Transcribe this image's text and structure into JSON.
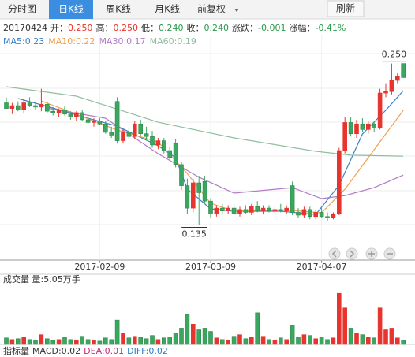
{
  "tabs": [
    "分时图",
    "日K线",
    "周K线",
    "月K线",
    "前复权"
  ],
  "active_tab": 1,
  "refresh": "刷新",
  "info": {
    "date": "20170424",
    "items": [
      {
        "label": "开：",
        "value": "0.250",
        "color": "#e8342e"
      },
      {
        "label": "高：",
        "value": "0.250",
        "color": "#e8342e"
      },
      {
        "label": "低：",
        "value": "0.240",
        "color": "#2a9a4a"
      },
      {
        "label": "收：",
        "value": "0.240",
        "color": "#2a9a4a"
      },
      {
        "label": "涨跌：",
        "value": "-0.001",
        "color": "#2a9a4a"
      },
      {
        "label": "涨幅：",
        "value": "-0.41%",
        "color": "#2a9a4a"
      }
    ]
  },
  "chart_data": {
    "type": "candlestick",
    "categories": [
      null,
      null,
      null,
      null,
      null,
      null,
      null,
      null,
      null,
      null,
      null,
      null,
      null,
      null,
      null,
      null,
      "2017-02-09",
      null,
      null,
      null,
      null,
      null,
      null,
      null,
      null,
      null,
      null,
      null,
      null,
      null,
      null,
      null,
      null,
      null,
      null,
      "2017-03-09",
      null,
      null,
      null,
      null,
      null,
      null,
      null,
      null,
      null,
      null,
      null,
      null,
      null,
      null,
      null,
      null,
      null,
      null,
      "2017-04-07",
      null,
      null,
      null,
      null,
      null,
      null,
      null,
      null,
      null,
      null,
      null,
      null,
      null,
      null
    ],
    "open": [
      0.222,
      0.218,
      0.22,
      0.217,
      0.222,
      0.22,
      0.219,
      0.221,
      0.216,
      0.215,
      0.217,
      0.214,
      0.212,
      0.215,
      0.21,
      0.208,
      0.209,
      0.207,
      0.201,
      0.223,
      0.195,
      0.201,
      0.198,
      0.207,
      0.2,
      0.198,
      0.192,
      0.195,
      0.188,
      0.193,
      0.178,
      0.163,
      0.147,
      0.165,
      0.166,
      0.152,
      0.143,
      0.147,
      0.145,
      0.147,
      0.143,
      0.146,
      0.144,
      0.148,
      0.145,
      0.147,
      0.145,
      0.146,
      0.145,
      0.163,
      0.144,
      0.142,
      0.146,
      0.141,
      0.144,
      0.141,
      0.14,
      0.143,
      0.188,
      0.208,
      0.2,
      0.207,
      0.203,
      0.207,
      0.204,
      0.229,
      0.23,
      0.238,
      0.25
    ],
    "high": [
      0.226,
      0.222,
      0.223,
      0.224,
      0.226,
      0.223,
      0.232,
      0.223,
      0.219,
      0.218,
      0.22,
      0.216,
      0.216,
      0.217,
      0.213,
      0.211,
      0.211,
      0.209,
      0.205,
      0.226,
      0.203,
      0.204,
      0.209,
      0.21,
      0.205,
      0.202,
      0.197,
      0.197,
      0.191,
      0.196,
      0.18,
      0.168,
      0.168,
      0.17,
      0.17,
      0.154,
      0.149,
      0.15,
      0.149,
      0.15,
      0.148,
      0.149,
      0.15,
      0.152,
      0.149,
      0.149,
      0.148,
      0.15,
      0.149,
      0.166,
      0.147,
      0.148,
      0.148,
      0.146,
      0.147,
      0.144,
      0.144,
      0.19,
      0.212,
      0.212,
      0.21,
      0.211,
      0.209,
      0.209,
      0.232,
      0.236,
      0.25,
      0.243,
      0.25
    ],
    "low": [
      0.218,
      0.214,
      0.216,
      0.215,
      0.219,
      0.217,
      0.216,
      0.215,
      0.213,
      0.212,
      0.213,
      0.21,
      0.209,
      0.209,
      0.206,
      0.205,
      0.206,
      0.2,
      0.197,
      0.193,
      0.193,
      0.196,
      0.196,
      0.198,
      0.195,
      0.19,
      0.189,
      0.186,
      0.181,
      0.176,
      0.16,
      0.143,
      0.144,
      0.135,
      0.15,
      0.14,
      0.141,
      0.143,
      0.143,
      0.142,
      0.141,
      0.143,
      0.142,
      0.144,
      0.143,
      0.144,
      0.143,
      0.144,
      0.143,
      0.142,
      0.14,
      0.14,
      0.139,
      0.139,
      0.14,
      0.138,
      0.139,
      0.142,
      0.186,
      0.198,
      0.197,
      0.201,
      0.2,
      0.201,
      0.203,
      0.226,
      0.228,
      0.236,
      0.24
    ],
    "close": [
      0.218,
      0.22,
      0.217,
      0.222,
      0.22,
      0.219,
      0.221,
      0.216,
      0.215,
      0.217,
      0.214,
      0.212,
      0.215,
      0.21,
      0.208,
      0.209,
      0.207,
      0.201,
      0.199,
      0.195,
      0.201,
      0.198,
      0.207,
      0.2,
      0.198,
      0.192,
      0.195,
      0.188,
      0.183,
      0.178,
      0.163,
      0.147,
      0.165,
      0.158,
      0.152,
      0.143,
      0.147,
      0.145,
      0.147,
      0.143,
      0.146,
      0.144,
      0.148,
      0.145,
      0.147,
      0.145,
      0.146,
      0.145,
      0.147,
      0.144,
      0.142,
      0.146,
      0.141,
      0.144,
      0.141,
      0.14,
      0.143,
      0.188,
      0.208,
      0.2,
      0.207,
      0.203,
      0.207,
      0.204,
      0.229,
      0.23,
      0.238,
      0.241,
      0.24
    ],
    "up_color": "#e8342e",
    "down_color": "#3aa660",
    "ylim": [
      0.11,
      0.27
    ],
    "max_label": "0.250",
    "min_label": "0.135",
    "ma": [
      {
        "name": "MA5:0.23",
        "color": "#3a7fc8",
        "x": [
          2,
          7,
          14,
          19,
          26,
          29,
          31,
          35,
          39,
          47,
          53,
          57,
          61,
          65,
          68
        ],
        "values": [
          0.2251,
          0.2195,
          0.211,
          0.2054,
          0.1914,
          0.183,
          0.1605,
          0.1465,
          0.1448,
          0.1448,
          0.1425,
          0.1633,
          0.1998,
          0.2167,
          0.2307
        ]
      },
      {
        "name": "MA10:0.22",
        "color": "#f0a050",
        "x": [
          6,
          12,
          19,
          26,
          31,
          35,
          39,
          47,
          54,
          58,
          62,
          68
        ],
        "values": [
          0.2234,
          0.2138,
          0.2026,
          0.1942,
          0.1717,
          0.1504,
          0.1448,
          0.1459,
          0.1437,
          0.1605,
          0.183,
          0.2167
        ]
      },
      {
        "name": "MA30:0.17",
        "color": "#b07cc6",
        "x": [
          7,
          17,
          26,
          33,
          39,
          49,
          54,
          58,
          63,
          68
        ],
        "values": [
          0.2183,
          0.211,
          0.1858,
          0.169,
          0.1577,
          0.1616,
          0.1538,
          0.156,
          0.1616,
          0.1706
        ]
      },
      {
        "name": "MA60:0.19",
        "color": "#8fbf9f",
        "x": [
          0,
          12,
          26,
          39,
          53,
          59,
          68
        ],
        "values": [
          0.2335,
          0.2268,
          0.2082,
          0.197,
          0.1875,
          0.1847,
          0.184
        ]
      }
    ],
    "volume": {
      "title": "成交量 量:5.05万手",
      "ylim": [
        0,
        70
      ],
      "values": [
        8,
        6,
        7,
        9,
        6,
        5,
        12,
        7,
        5,
        6,
        9,
        6,
        5,
        10,
        6,
        5,
        4,
        8,
        6,
        30,
        14,
        8,
        10,
        9,
        7,
        11,
        6,
        8,
        9,
        14,
        20,
        37,
        25,
        18,
        20,
        16,
        8,
        6,
        5,
        10,
        12,
        7,
        9,
        39,
        10,
        6,
        5,
        8,
        6,
        24,
        9,
        12,
        11,
        7,
        9,
        6,
        8,
        63,
        45,
        20,
        14,
        12,
        9,
        8,
        45,
        18,
        20,
        8,
        5.05
      ]
    }
  },
  "indicator": [
    {
      "text": "指标量",
      "color": "#333333"
    },
    {
      "text": "MACD:0.02",
      "color": "#333333"
    },
    {
      "text": "DEA:0.01",
      "color": "#c0307a"
    },
    {
      "text": "DIFF:0.02",
      "color": "#2a7fc8"
    }
  ]
}
